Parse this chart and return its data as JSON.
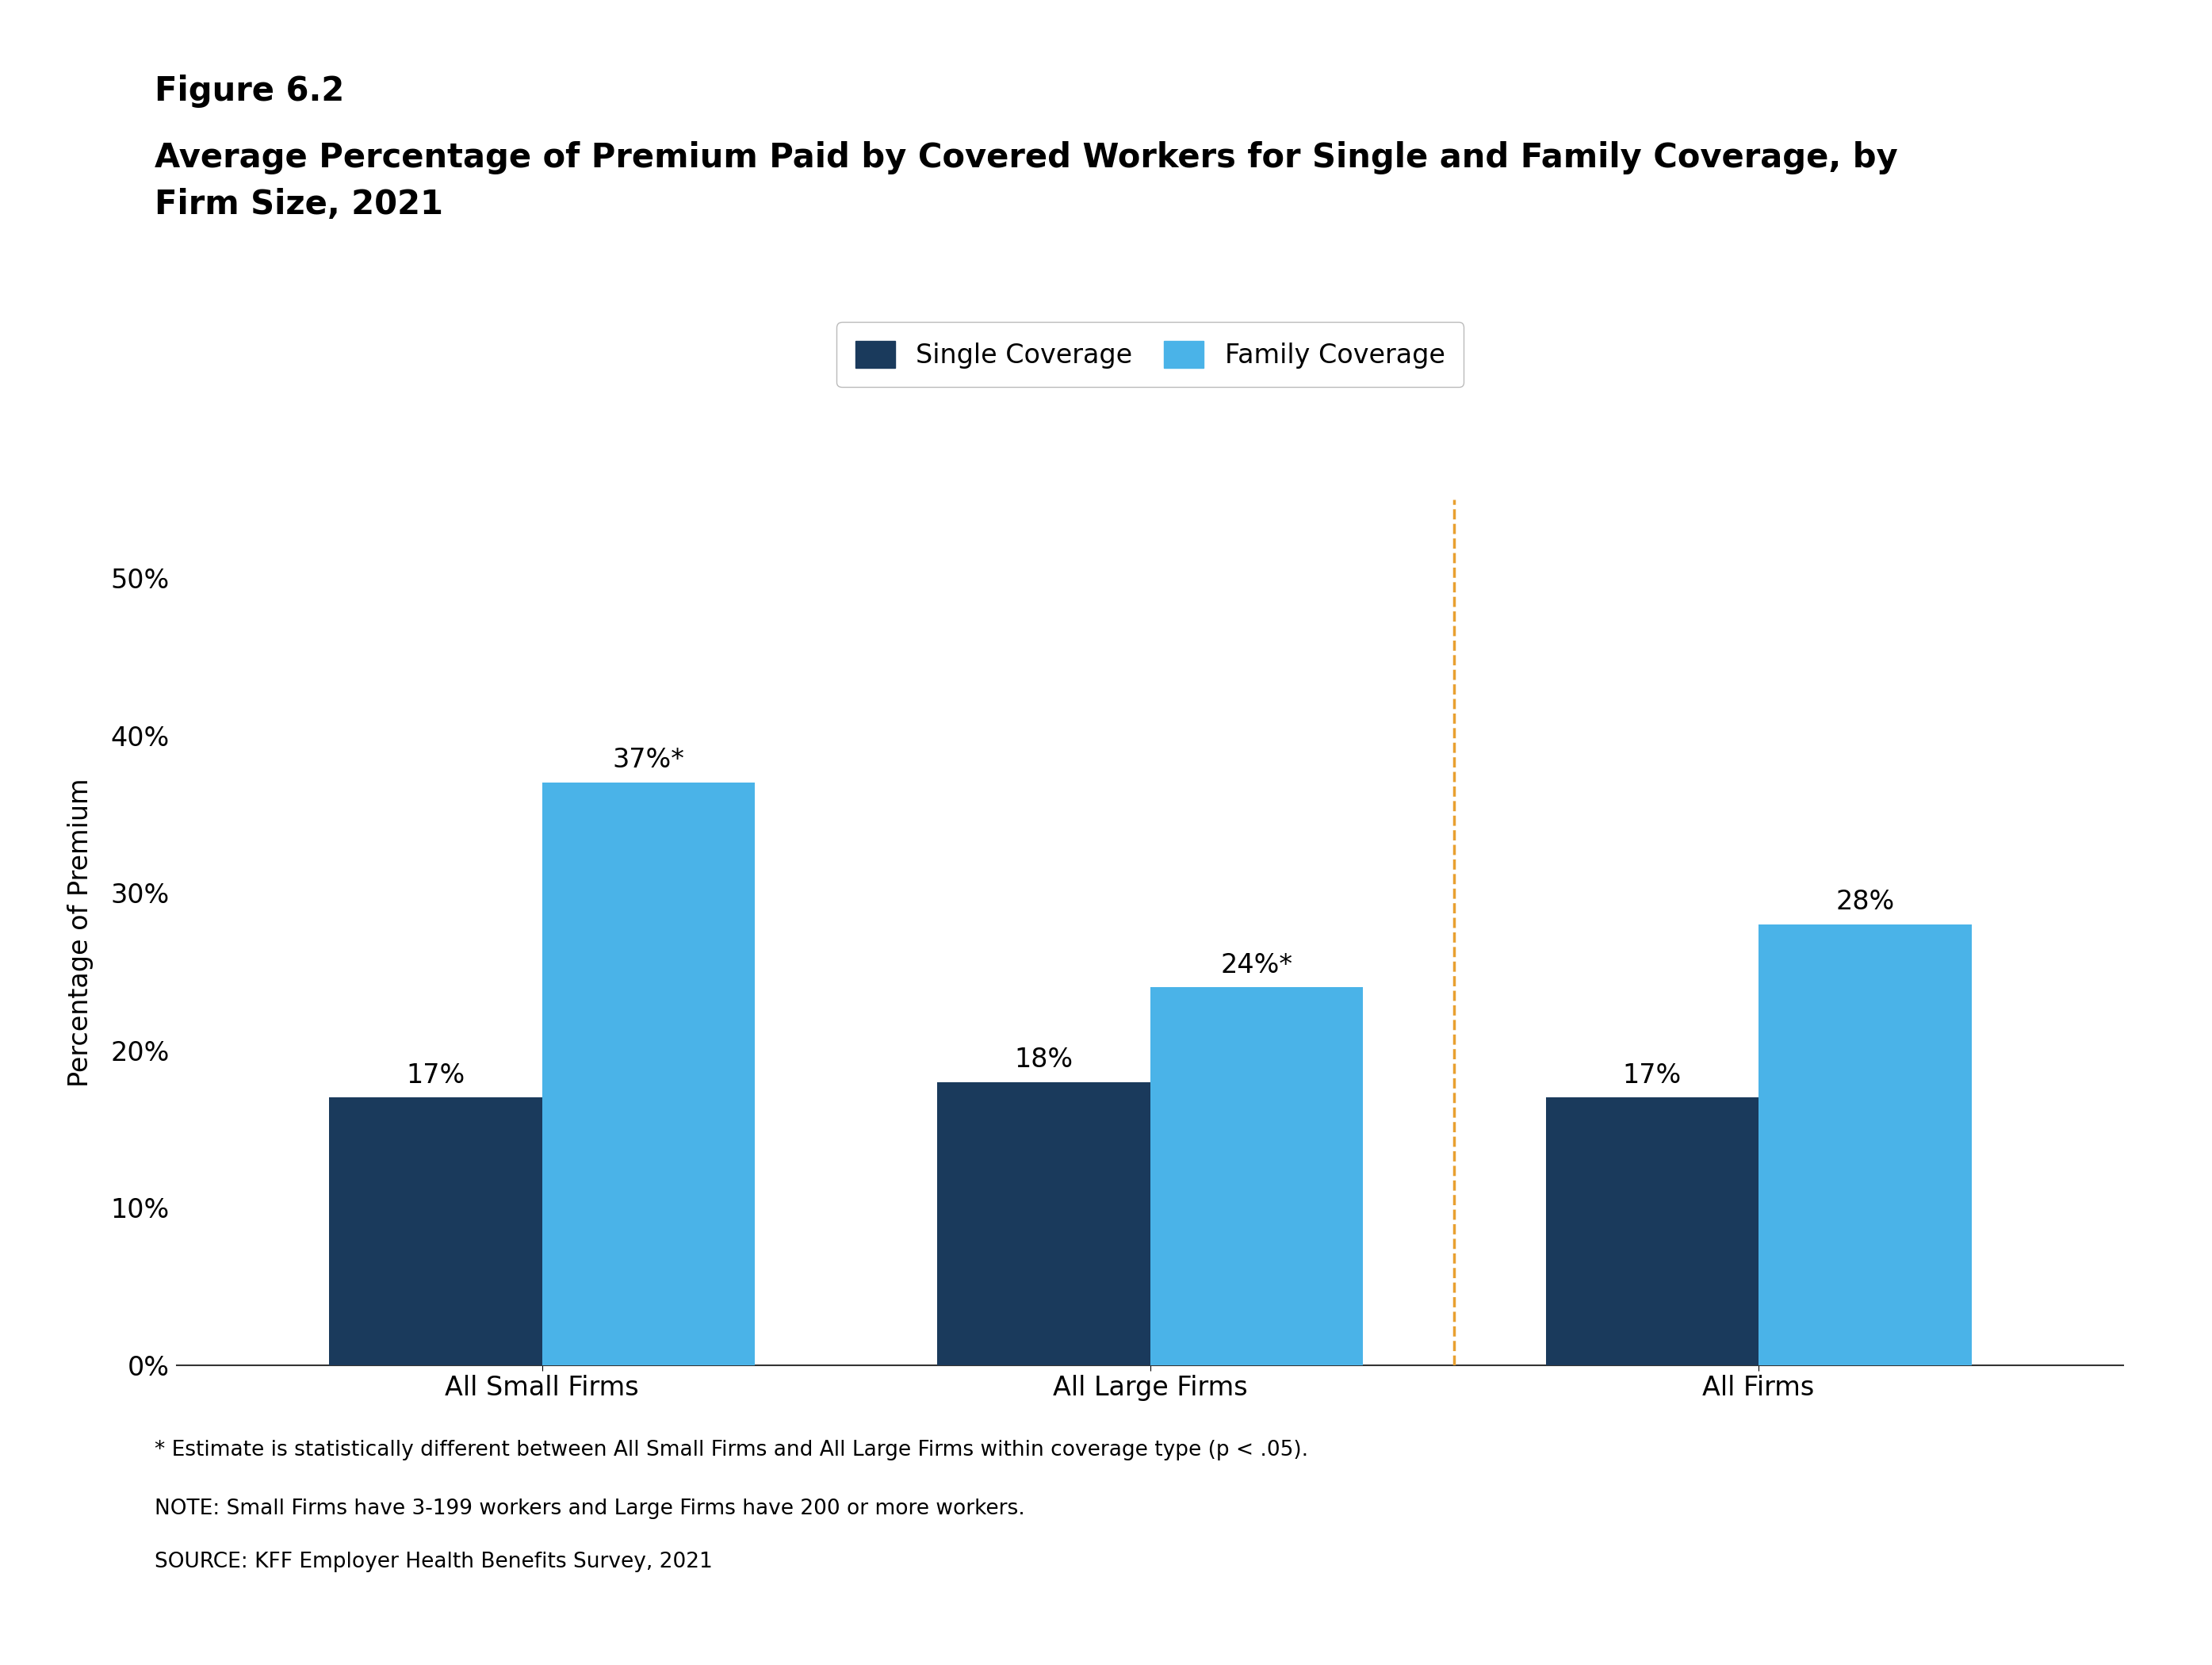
{
  "figure_label": "Figure 6.2",
  "title": "Average Percentage of Premium Paid by Covered Workers for Single and Family Coverage, by\nFirm Size, 2021",
  "ylabel": "Percentage of Premium",
  "categories": [
    "All Small Firms",
    "All Large Firms",
    "All Firms"
  ],
  "single_values": [
    17,
    18,
    17
  ],
  "family_values": [
    37,
    24,
    28
  ],
  "single_labels": [
    "17%",
    "18%",
    "17%"
  ],
  "family_labels": [
    "37%*",
    "24%*",
    "28%"
  ],
  "single_color": "#1a3a5c",
  "family_color": "#4ab3e8",
  "bar_width": 0.35,
  "ylim": [
    0,
    55
  ],
  "yticks": [
    0,
    10,
    20,
    30,
    40,
    50
  ],
  "ytick_labels": [
    "0%",
    "10%",
    "20%",
    "30%",
    "40%",
    "50%"
  ],
  "legend_labels": [
    "Single Coverage",
    "Family Coverage"
  ],
  "dashed_line_x": 1.5,
  "dashed_line_color": "#e8a030",
  "footnote1": "* Estimate is statistically different between All Small Firms and All Large Firms within coverage type (p < .05).",
  "footnote2": "NOTE: Small Firms have 3-199 workers and Large Firms have 200 or more workers.",
  "footnote3": "SOURCE: KFF Employer Health Benefits Survey, 2021",
  "bg_color": "#ffffff",
  "text_color": "#000000",
  "title_fontsize": 30,
  "label_fontsize": 24,
  "tick_fontsize": 24,
  "bar_label_fontsize": 24,
  "legend_fontsize": 24,
  "footnote_fontsize": 19,
  "figure_label_fontsize": 30
}
